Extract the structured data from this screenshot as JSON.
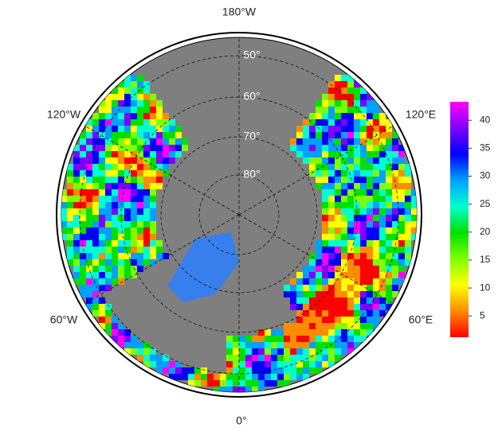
{
  "map": {
    "longitude_labels": [
      "180°W",
      "120°W",
      "120°E",
      "60°W",
      "60°E",
      "0°"
    ],
    "latitude_labels": [
      "50°",
      "60°",
      "70°",
      "80°"
    ],
    "colorbar": {
      "lim": [
        1.2,
        43.3
      ],
      "ticks": [
        5,
        10,
        15,
        20,
        25,
        30,
        35,
        40
      ],
      "colors": [
        "#ff0000",
        "#ff8c00",
        "#ffff00",
        "#7fff00",
        "#00e000",
        "#00ffd0",
        "#00a0ff",
        "#0000ff",
        "#8000ff",
        "#ff00ff"
      ]
    }
  }
}
